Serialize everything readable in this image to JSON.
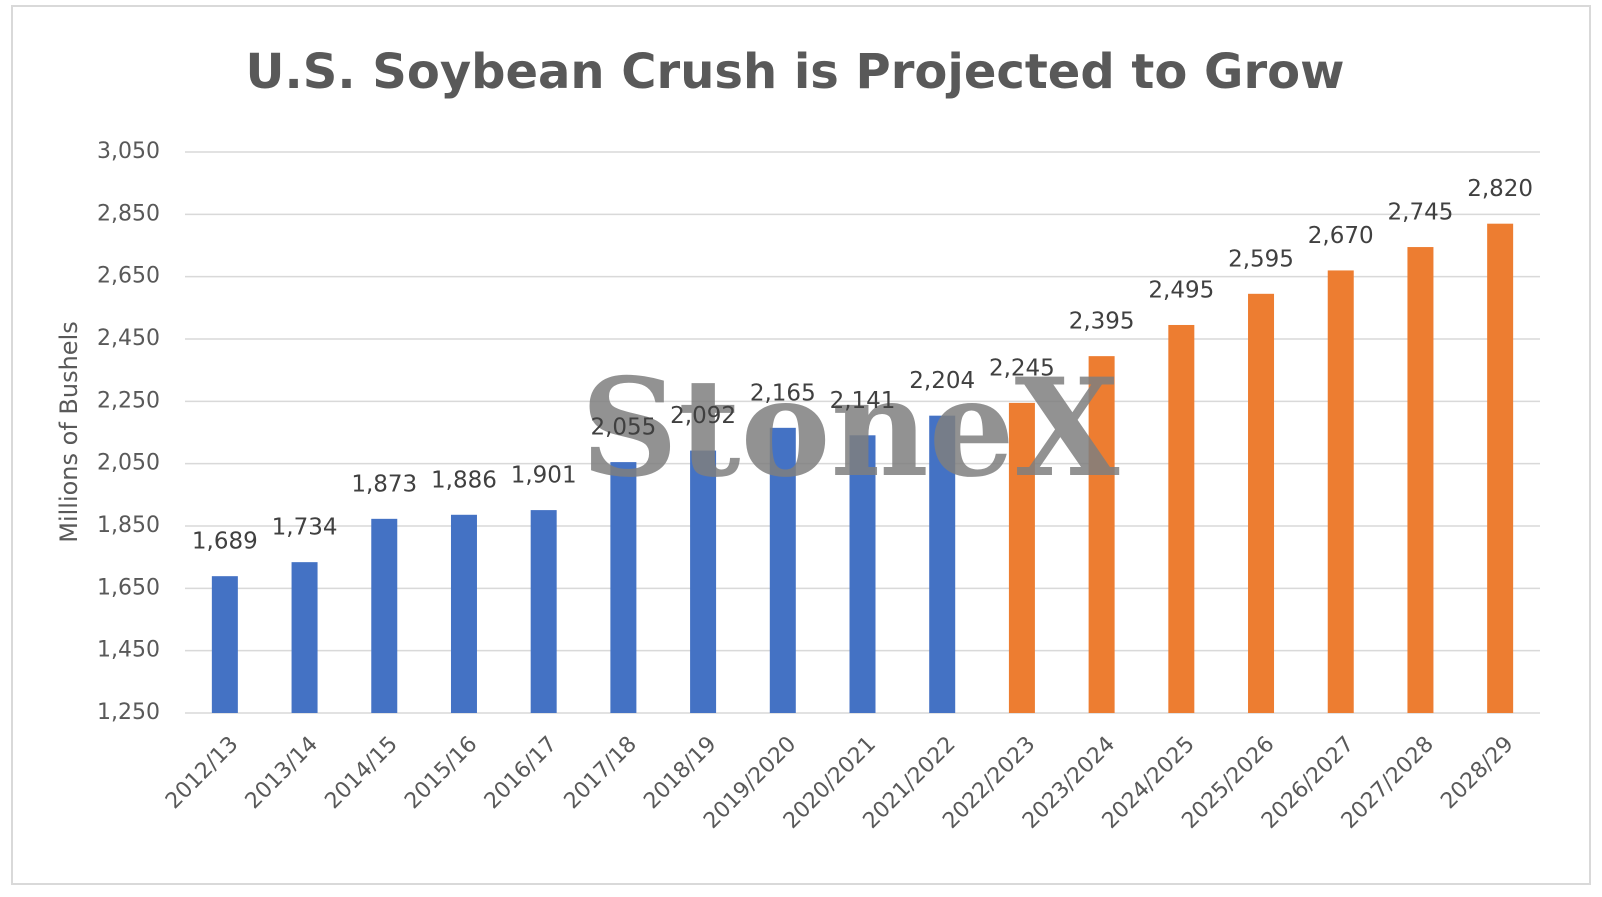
{
  "chart_data": {
    "type": "bar",
    "title": "U.S. Soybean Crush is Projected to Grow",
    "y_label": "Millions of Bushels",
    "watermark": "StoneX",
    "categories": [
      "2012/13",
      "2013/14",
      "2014/15",
      "2015/16",
      "2016/17",
      "2017/18",
      "2018/19",
      "2019/2020",
      "2020/2021",
      "2021/2022",
      "2022/2023",
      "2023/2024",
      "2024/2025",
      "2025/2026",
      "2026/2027",
      "2027/2028",
      "2028/29"
    ],
    "values": [
      1689,
      1734,
      1873,
      1886,
      1901,
      2055,
      2092,
      2165,
      2141,
      2204,
      2245,
      2395,
      2495,
      2595,
      2670,
      2745,
      2820
    ],
    "value_labels": [
      "1,689",
      "1,734",
      "1,873",
      "1,886",
      "1,901",
      "2,055",
      "2,092",
      "2,165",
      "2,141",
      "2,204",
      "2,245",
      "2,395",
      "2,495",
      "2,595",
      "2,670",
      "2,745",
      "2,820"
    ],
    "colors": [
      "#4472c4",
      "#4472c4",
      "#4472c4",
      "#4472c4",
      "#4472c4",
      "#4472c4",
      "#4472c4",
      "#4472c4",
      "#4472c4",
      "#4472c4",
      "#ed7d31",
      "#ed7d31",
      "#ed7d31",
      "#ed7d31",
      "#ed7d31",
      "#ed7d31",
      "#ed7d31"
    ],
    "ylim": [
      1250,
      3050
    ],
    "yticks": [
      {
        "value": 1250,
        "label": "1,250"
      },
      {
        "value": 1450,
        "label": "1,450"
      },
      {
        "value": 1650,
        "label": "1,650"
      },
      {
        "value": 1850,
        "label": "1,850"
      },
      {
        "value": 2050,
        "label": "2,050"
      },
      {
        "value": 2250,
        "label": "2,250"
      },
      {
        "value": 2450,
        "label": "2,450"
      },
      {
        "value": 2650,
        "label": "2,650"
      },
      {
        "value": 2850,
        "label": "2,850"
      },
      {
        "value": 3050,
        "label": "3,050"
      }
    ],
    "grid": true
  }
}
